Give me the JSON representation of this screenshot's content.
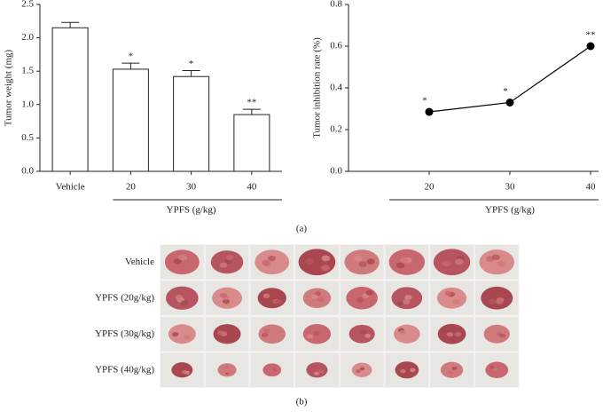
{
  "chart_data": [
    {
      "type": "bar",
      "ylabel": "Tumor weight (mg)",
      "xlabel": "YPFS (g/kg)",
      "categories": [
        "Vehicle",
        "20",
        "30",
        "40"
      ],
      "values": [
        2.15,
        1.53,
        1.42,
        0.85
      ],
      "errors": [
        0.08,
        0.09,
        0.09,
        0.08
      ],
      "significance": [
        null,
        "*",
        "*",
        "**"
      ],
      "color": "#ffffff",
      "ylim": [
        0,
        2.5
      ],
      "yticks": [
        {
          "value": 0,
          "label": "0.0"
        },
        0.5,
        {
          "value": 1,
          "label": "1.0"
        },
        1.5,
        {
          "value": 2,
          "label": "2.0"
        },
        2.5
      ]
    },
    {
      "type": "line",
      "ylabel": "Tumor inhibition rate (%)",
      "xlabel": "YPFS (g/kg)",
      "categories": [
        "20",
        "30",
        "40"
      ],
      "values": [
        0.285,
        0.33,
        0.6
      ],
      "significance": [
        "*",
        "*",
        "**"
      ],
      "color": "#000000",
      "ylim": [
        0,
        0.8
      ],
      "yticks": [
        {
          "value": 0,
          "label": "0.0"
        },
        0.2,
        0.4,
        0.6,
        0.8
      ]
    }
  ],
  "panel_labels": [
    "(a)",
    "(b)"
  ],
  "photo_grid": {
    "row_labels": [
      "Vehicle",
      "YPFS (20g/kg)",
      "YPFS (30g/kg)",
      "YPFS (40g/kg)"
    ]
  }
}
